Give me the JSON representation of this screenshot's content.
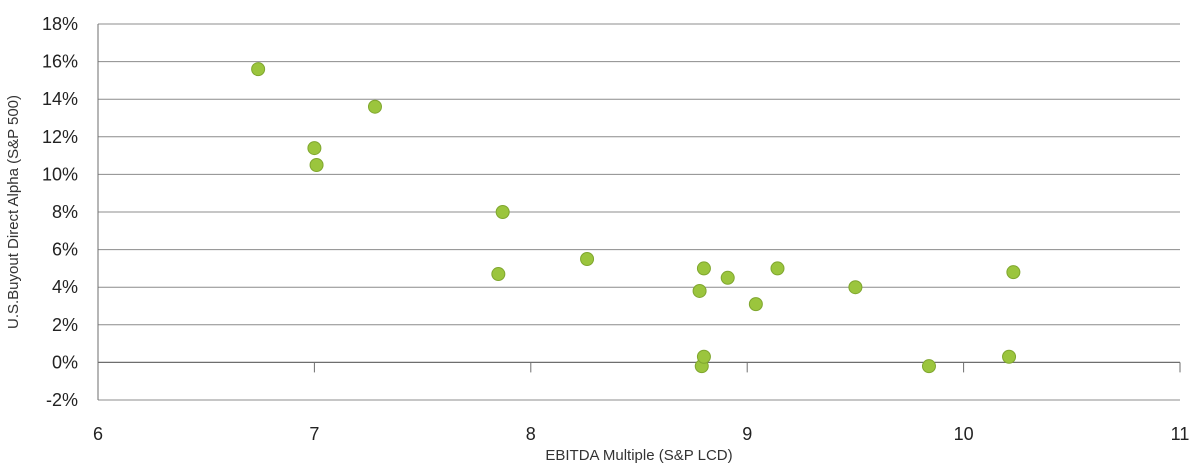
{
  "chart_data": {
    "type": "scatter",
    "title": "",
    "xlabel": "EBITDA Multiple (S&P LCD)",
    "ylabel": "U.S.Buyout Direct Alpha (S&P 500)",
    "xlim": [
      6,
      11
    ],
    "ylim": [
      -2,
      18
    ],
    "x_ticks": [
      "6",
      "7",
      "8",
      "9",
      "10",
      "11"
    ],
    "y_ticks": [
      "-2%",
      "0%",
      "2%",
      "4%",
      "6%",
      "8%",
      "10%",
      "12%",
      "14%",
      "16%",
      "18%"
    ],
    "y_unit": "%",
    "grid": "horizontal",
    "legend": "none",
    "marker_color": "#9BC53D",
    "marker_edge_color": "#7FA62E",
    "points": [
      {
        "x": 6.74,
        "y": 15.6
      },
      {
        "x": 7.0,
        "y": 11.4
      },
      {
        "x": 7.01,
        "y": 10.5
      },
      {
        "x": 7.28,
        "y": 13.6
      },
      {
        "x": 7.85,
        "y": 4.7
      },
      {
        "x": 7.87,
        "y": 8.0
      },
      {
        "x": 8.26,
        "y": 5.5
      },
      {
        "x": 8.78,
        "y": 3.8
      },
      {
        "x": 8.79,
        "y": -0.2
      },
      {
        "x": 8.8,
        "y": 0.3
      },
      {
        "x": 8.8,
        "y": 5.0
      },
      {
        "x": 8.91,
        "y": 4.5
      },
      {
        "x": 9.04,
        "y": 3.1
      },
      {
        "x": 9.14,
        "y": 5.0
      },
      {
        "x": 9.5,
        "y": 4.0
      },
      {
        "x": 9.84,
        "y": -0.2
      },
      {
        "x": 10.21,
        "y": 0.3
      },
      {
        "x": 10.23,
        "y": 4.8
      }
    ]
  }
}
